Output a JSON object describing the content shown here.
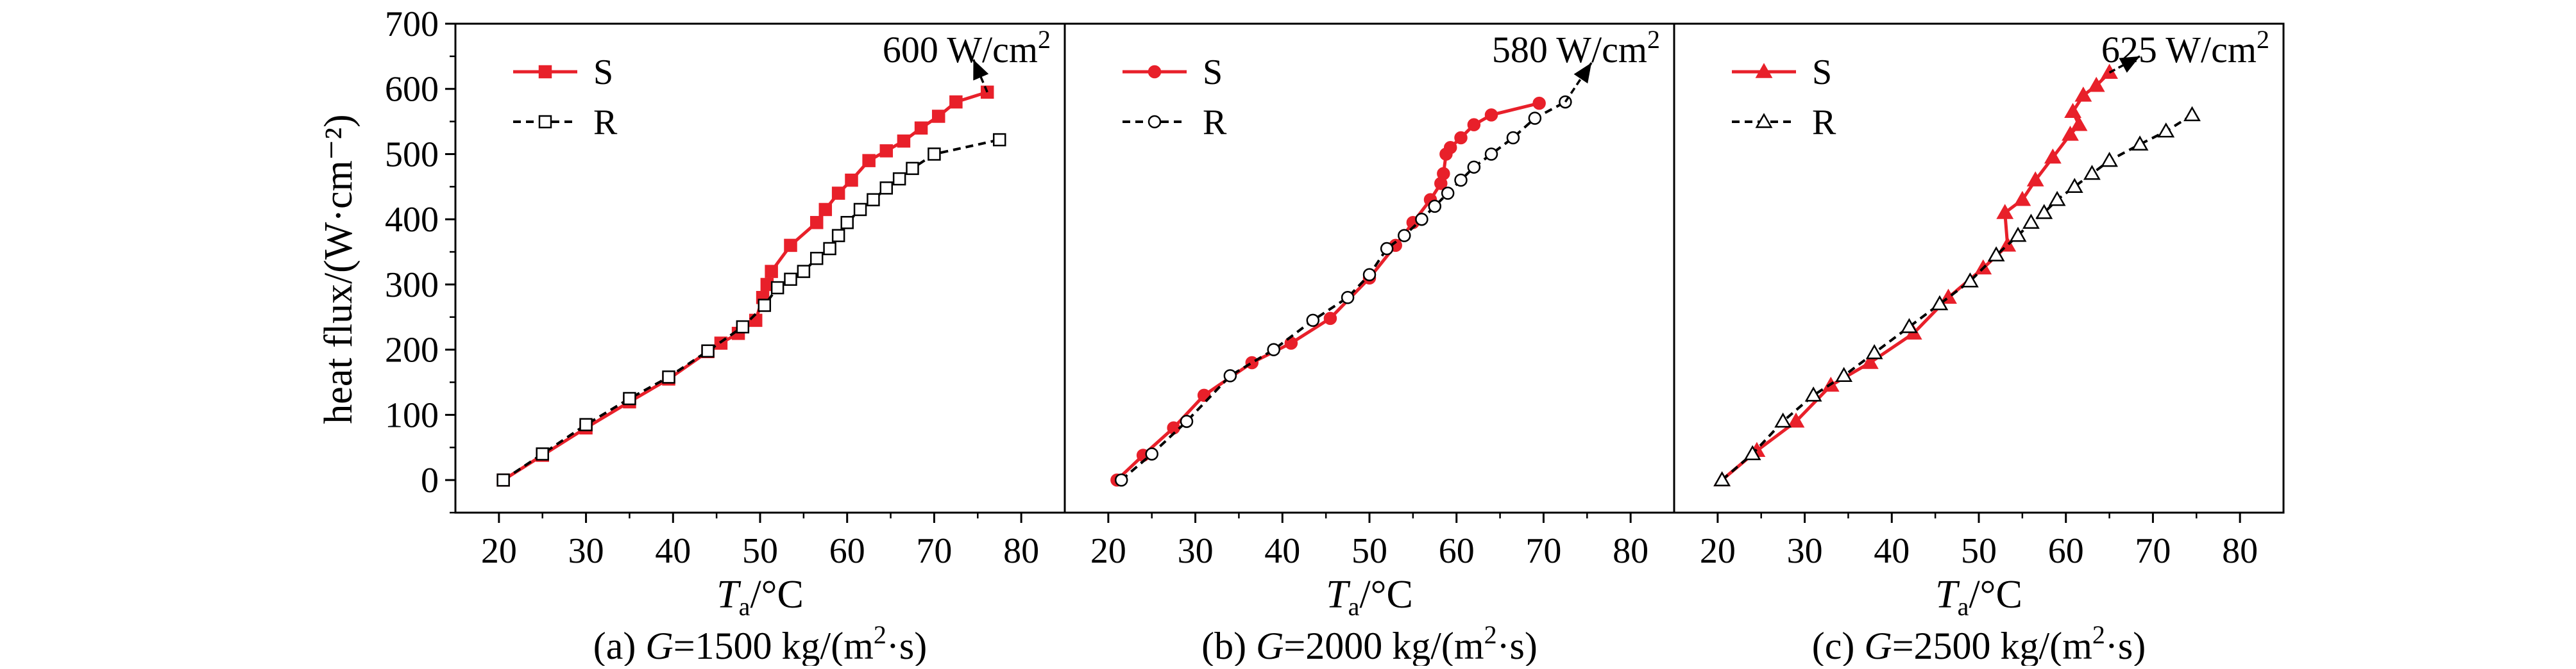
{
  "figure": {
    "y_axis_title": "heat flux/(W·cm⁻²)"
  },
  "chart_data": [
    {
      "type": "line",
      "caption": {
        "prefix": "(a) ",
        "var": "G",
        "text": "=1500 kg/(m",
        "sup": "2",
        "tail": "·s)"
      },
      "xlabel": {
        "var": "T",
        "sub": "a",
        "unit": "/°C"
      },
      "ylabel": "heat flux/(W·cm⁻²)",
      "xlim": [
        15,
        85
      ],
      "ylim": [
        -50,
        700
      ],
      "xticks": [
        20,
        30,
        40,
        50,
        60,
        70,
        80
      ],
      "yticks": [
        0,
        100,
        200,
        300,
        400,
        500,
        600,
        700
      ],
      "annotation": {
        "text": "600 W/cm",
        "sup": "2",
        "arrow_from": [
          76.1,
          595
        ],
        "arrow_to": [
          74.5,
          645
        ]
      },
      "series": [
        {
          "name": "S",
          "color": "#e8202a",
          "marker": "square-filled",
          "dash": false,
          "x": [
            20.5,
            25,
            30,
            35,
            39.5,
            44,
            45.5,
            47.5,
            49.5,
            50.3,
            50.8,
            51.3,
            53.5,
            56.5,
            57.5,
            59,
            60.5,
            62.5,
            64.5,
            66.5,
            68.5,
            70.5,
            72.5,
            76.1
          ],
          "y": [
            0,
            38,
            80,
            120,
            155,
            197,
            210,
            225,
            245,
            280,
            300,
            320,
            360,
            395,
            415,
            440,
            460,
            490,
            505,
            520,
            540,
            558,
            580,
            595
          ]
        },
        {
          "name": "R",
          "color": "#000000",
          "marker": "square-open",
          "dash": true,
          "x": [
            20.5,
            25,
            30,
            35,
            39.5,
            44,
            48,
            50.5,
            52,
            53.5,
            55,
            56.5,
            58,
            59,
            60,
            61.5,
            63,
            64.5,
            66,
            67.5,
            70,
            77.5
          ],
          "y": [
            0,
            40,
            85,
            125,
            158,
            198,
            235,
            268,
            295,
            308,
            320,
            340,
            355,
            375,
            395,
            415,
            430,
            448,
            462,
            478,
            500,
            522
          ]
        }
      ]
    },
    {
      "type": "line",
      "caption": {
        "prefix": "(b) ",
        "var": "G",
        "text": "=2000 kg/(m",
        "sup": "2",
        "tail": "·s)"
      },
      "xlabel": {
        "var": "T",
        "sub": "a",
        "unit": "/°C"
      },
      "ylabel": "",
      "xlim": [
        15,
        85
      ],
      "ylim": [
        -50,
        700
      ],
      "xticks": [
        20,
        30,
        40,
        50,
        60,
        70,
        80
      ],
      "yticks": [
        0,
        100,
        200,
        300,
        400,
        500,
        600,
        700
      ],
      "annotation": {
        "text": "580 W/cm",
        "sup": "2",
        "arrow_from": [
          72.5,
          580
        ],
        "arrow_to": [
          75.5,
          640
        ]
      },
      "series": [
        {
          "name": "S",
          "color": "#e8202a",
          "marker": "circle-filled",
          "dash": false,
          "x": [
            21,
            24,
            27.5,
            31,
            36.5,
            41,
            45.5,
            50,
            53,
            55,
            57,
            58.2,
            58.5,
            58.8,
            59.3,
            60.5,
            62,
            64,
            69.5
          ],
          "y": [
            0,
            38,
            80,
            130,
            180,
            210,
            248,
            310,
            360,
            395,
            430,
            455,
            470,
            500,
            510,
            525,
            545,
            560,
            578
          ]
        },
        {
          "name": "R",
          "color": "#000000",
          "marker": "circle-open",
          "dash": true,
          "x": [
            21.5,
            25,
            29,
            34,
            39,
            43.5,
            47.5,
            50,
            52,
            54,
            56,
            57.5,
            59,
            60.5,
            62,
            64,
            66.5,
            69,
            72.5
          ],
          "y": [
            0,
            40,
            90,
            160,
            200,
            245,
            280,
            315,
            355,
            375,
            400,
            420,
            440,
            460,
            480,
            500,
            525,
            555,
            580
          ]
        }
      ]
    },
    {
      "type": "line",
      "caption": {
        "prefix": "(c) ",
        "var": "G",
        "text": "=2500 kg/(m",
        "sup": "2",
        "tail": "·s)"
      },
      "xlabel": {
        "var": "T",
        "sub": "a",
        "unit": "/°C"
      },
      "ylabel": "",
      "xlim": [
        15,
        85
      ],
      "ylim": [
        -50,
        700
      ],
      "xticks": [
        20,
        30,
        40,
        50,
        60,
        70,
        80
      ],
      "yticks": [
        0,
        100,
        200,
        300,
        400,
        500,
        600,
        700
      ],
      "annotation": {
        "text": "625 W/cm",
        "sup": "2",
        "arrow_from": [
          65,
          625
        ],
        "arrow_to": [
          68.5,
          650
        ]
      },
      "series": [
        {
          "name": "S",
          "color": "#e8202a",
          "marker": "triangle-filled",
          "dash": false,
          "x": [
            20.5,
            24.5,
            29,
            33,
            37.5,
            42.5,
            46.5,
            50.5,
            53.3,
            53,
            55,
            56.5,
            58.5,
            60.5,
            61.5,
            60.8,
            62,
            63.5,
            65
          ],
          "y": [
            0,
            45,
            90,
            145,
            180,
            225,
            280,
            325,
            360,
            410,
            430,
            460,
            495,
            530,
            545,
            565,
            590,
            605,
            625
          ]
        },
        {
          "name": "R",
          "color": "#000000",
          "marker": "triangle-open",
          "dash": true,
          "x": [
            20.5,
            24,
            27.5,
            31,
            34.5,
            38,
            42,
            45.5,
            49,
            52,
            54.5,
            56,
            57.5,
            59,
            61,
            63,
            65,
            68.5,
            71.5,
            74.5
          ],
          "y": [
            0,
            40,
            90,
            130,
            160,
            195,
            235,
            270,
            305,
            345,
            375,
            395,
            410,
            430,
            450,
            470,
            490,
            515,
            535,
            560
          ]
        }
      ]
    }
  ]
}
